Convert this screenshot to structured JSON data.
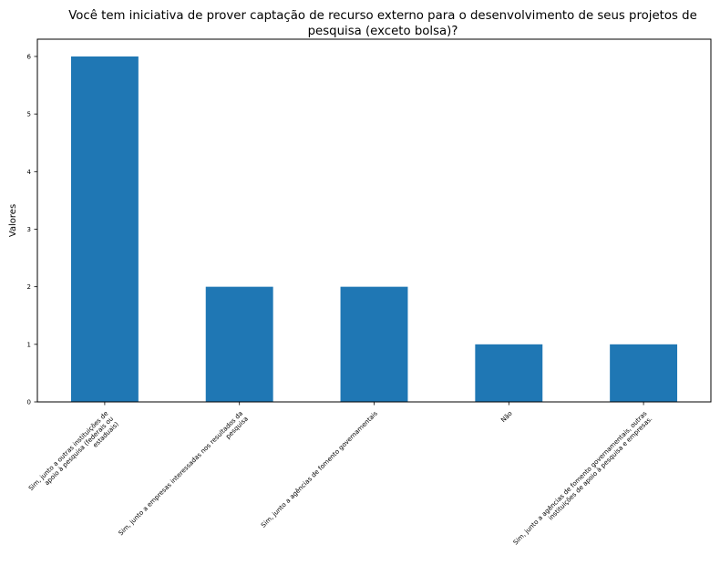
{
  "chart_data": {
    "type": "bar",
    "title_lines": [
      "Você tem iniciativa de prover captação de recurso externo para o desenvolvimento de seus projetos de",
      "pesquisa (exceto bolsa)?"
    ],
    "xlabel": "",
    "ylabel": "Valores",
    "ylim": [
      0,
      6.3
    ],
    "yticks": [
      0,
      1,
      2,
      3,
      4,
      5,
      6
    ],
    "categories": [
      [
        "Sim, junto a outras instituições de",
        "apoio à pesquisa (federais ou",
        "estaduais)"
      ],
      [
        "Sim, junto a empresas interessadas nos resultados da",
        "pesquisa"
      ],
      [
        "Sim, junto a agências de fomento governamentais"
      ],
      [
        "Não"
      ],
      [
        "Sim, junto a agências de fomento governamentais, outras",
        "instituições de apoio à pesquisa e empresas."
      ]
    ],
    "values": [
      6,
      2,
      2,
      1,
      1
    ],
    "bar_color": "#1f77b4",
    "grid": false,
    "legend": "none"
  }
}
